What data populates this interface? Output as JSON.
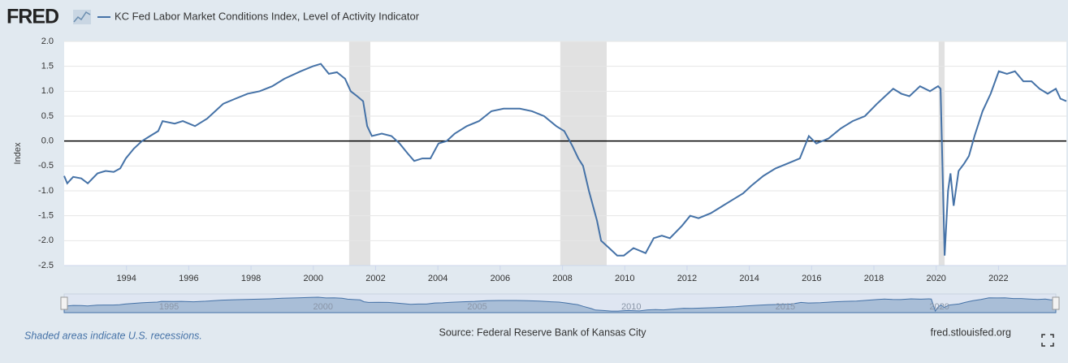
{
  "logo": "FRED",
  "chart_data": {
    "type": "line",
    "y_label": "Index",
    "x": [
      1992.0,
      1992.1,
      1992.29,
      1992.55,
      1992.76,
      1993.07,
      1993.33,
      1993.59,
      1993.8,
      1993.98,
      1994.24,
      1994.5,
      1994.76,
      1995.02,
      1995.16,
      1995.55,
      1995.81,
      1996.2,
      1996.59,
      1996.85,
      1997.11,
      1997.5,
      1997.89,
      1998.28,
      1998.68,
      1999.07,
      1999.59,
      1999.98,
      2000.24,
      2000.5,
      2000.76,
      2001.02,
      2001.2,
      2001.41,
      2001.6,
      2001.73,
      2001.88,
      2002.2,
      2002.51,
      2002.77,
      2003.03,
      2003.24,
      2003.5,
      2003.76,
      2004.02,
      2004.28,
      2004.54,
      2004.93,
      2005.32,
      2005.72,
      2006.11,
      2006.63,
      2007.02,
      2007.41,
      2007.8,
      2008.06,
      2008.32,
      2008.51,
      2008.66,
      2008.85,
      2009.11,
      2009.24,
      2009.5,
      2009.76,
      2009.97,
      2010.28,
      2010.67,
      2010.93,
      2011.19,
      2011.45,
      2011.84,
      2012.1,
      2012.37,
      2012.76,
      2013.15,
      2013.54,
      2013.8,
      2014.06,
      2014.45,
      2014.84,
      2015.23,
      2015.62,
      2015.91,
      2016.15,
      2016.54,
      2016.93,
      2017.32,
      2017.71,
      2018.1,
      2018.36,
      2018.62,
      2018.88,
      2019.14,
      2019.48,
      2019.8,
      2020.06,
      2020.14,
      2020.27,
      2020.38,
      2020.46,
      2020.56,
      2020.72,
      2020.9,
      2021.05,
      2021.23,
      2021.49,
      2021.75,
      2022.01,
      2022.27,
      2022.53,
      2022.8,
      2023.06,
      2023.32,
      2023.58,
      2023.84,
      2023.99,
      2024.18
    ],
    "series": [
      {
        "name": "KC Fed Labor Market Conditions Index, Level of Activity Indicator",
        "color": "#4572a7",
        "values": [
          -0.7,
          -0.85,
          -0.72,
          -0.75,
          -0.85,
          -0.65,
          -0.6,
          -0.62,
          -0.55,
          -0.35,
          -0.15,
          0.0,
          0.1,
          0.2,
          0.4,
          0.35,
          0.4,
          0.3,
          0.45,
          0.6,
          0.75,
          0.85,
          0.95,
          1.0,
          1.1,
          1.25,
          1.4,
          1.5,
          1.55,
          1.35,
          1.38,
          1.25,
          1.0,
          0.9,
          0.8,
          0.3,
          0.1,
          0.15,
          0.1,
          -0.05,
          -0.25,
          -0.4,
          -0.35,
          -0.35,
          -0.05,
          0.0,
          0.15,
          0.3,
          0.4,
          0.6,
          0.65,
          0.65,
          0.6,
          0.5,
          0.3,
          0.2,
          -0.1,
          -0.35,
          -0.5,
          -1.0,
          -1.6,
          -2.0,
          -2.15,
          -2.3,
          -2.3,
          -2.15,
          -2.25,
          -1.95,
          -1.9,
          -1.95,
          -1.7,
          -1.5,
          -1.55,
          -1.45,
          -1.3,
          -1.15,
          -1.05,
          -0.9,
          -0.7,
          -0.55,
          -0.45,
          -0.35,
          0.1,
          -0.05,
          0.05,
          0.25,
          0.4,
          0.5,
          0.75,
          0.9,
          1.05,
          0.95,
          0.9,
          1.1,
          1.0,
          1.1,
          1.05,
          -2.3,
          -1.0,
          -0.65,
          -1.3,
          -0.6,
          -0.45,
          -0.3,
          0.1,
          0.6,
          0.95,
          1.4,
          1.35,
          1.4,
          1.2,
          1.2,
          1.05,
          0.95,
          1.05,
          0.85,
          0.8
        ]
      }
    ],
    "recessions": [
      [
        2001.15,
        2001.83
      ],
      [
        2007.93,
        2009.42
      ],
      [
        2020.08,
        2020.27
      ]
    ],
    "recession_color": "#e1e1e1",
    "xlim": [
      1992,
      2024.18
    ],
    "xticks": [
      1994,
      1996,
      1998,
      2000,
      2002,
      2004,
      2006,
      2008,
      2010,
      2012,
      2014,
      2016,
      2018,
      2020,
      2022
    ],
    "ylim": [
      -2.5,
      2.0
    ],
    "yticks": [
      {
        "value": -2.5,
        "label": "-2.5"
      },
      {
        "value": -2,
        "label": "-2.0"
      },
      -1.5,
      {
        "value": -1,
        "label": "-1.0"
      },
      -0.5,
      {
        "value": 0,
        "label": "0.0"
      },
      0.5,
      {
        "value": 1,
        "label": "1.0"
      },
      1.5,
      {
        "value": 2,
        "label": "2.0"
      }
    ],
    "grid": true,
    "navigator_ticks": [
      1995,
      2000,
      2005,
      2010,
      2015,
      2020
    ],
    "recession_note": "Shaded areas indicate U.S. recessions.",
    "source": "Source: Federal Reserve Bank of Kansas City",
    "site": "fred.stlouisfed.org"
  }
}
